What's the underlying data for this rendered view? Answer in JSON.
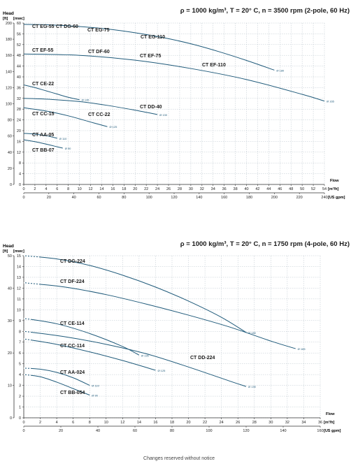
{
  "footer": "Changes reserved without notice",
  "chart_data": [
    {
      "type": "line",
      "title": "ρ = 1000 kg/m³, T = 20° C, n = 3500 rpm (2-pole, 60 Hz)",
      "ylabel": "Head",
      "ylabel_units": [
        "[ft]",
        "[mwc]"
      ],
      "xlabel": "Flow",
      "xlabel_units": [
        "[m³/h]",
        "[US gpm]"
      ],
      "x_m3h_ticks": [
        0,
        2,
        4,
        6,
        8,
        10,
        12,
        14,
        16,
        18,
        20,
        22,
        24,
        26,
        28,
        30,
        32,
        34,
        36,
        38,
        40,
        42,
        44,
        46,
        48,
        50,
        52,
        54
      ],
      "x_usgpm_ticks": [
        0,
        20,
        40,
        60,
        80,
        100,
        120,
        140,
        160,
        180,
        200,
        220,
        240
      ],
      "y_mwc_ticks": [
        0,
        4,
        8,
        12,
        16,
        20,
        24,
        28,
        32,
        36,
        40,
        44,
        48,
        52,
        56,
        60
      ],
      "y_ft_ticks": [
        0,
        20,
        40,
        60,
        80,
        100,
        120,
        140,
        160,
        180,
        200
      ],
      "xlim_m3h": [
        0,
        54
      ],
      "xlim_usgpm": [
        0,
        240
      ],
      "ylim_mwc": [
        0,
        60
      ],
      "ylim_ft": [
        0,
        200
      ],
      "grid": true,
      "series": [
        {
          "name": "CT EG-55 CT DG-60 / CT EG-75 / CT EG-110",
          "end_label": "Ø 180",
          "x": [
            0,
            5,
            10,
            15,
            20,
            25,
            30,
            35,
            40,
            45
          ],
          "y": [
            59.5,
            59.3,
            58.7,
            57.8,
            56.4,
            54.6,
            52.3,
            49.4,
            46.1,
            42.5
          ]
        },
        {
          "name": "CT EF-55 / CT DF-60 / CT EF-75 / CT EF-110",
          "end_label": "Ø 165",
          "x": [
            0,
            10,
            20,
            30,
            40,
            50,
            54
          ],
          "y": [
            48.5,
            48,
            46.2,
            43.1,
            39,
            33.5,
            31
          ]
        },
        {
          "name": "CT CE-22",
          "end_label": "Ø 135",
          "x": [
            0,
            2,
            4,
            6,
            8,
            10
          ],
          "y": [
            37,
            36,
            34.8,
            33.6,
            32.4,
            31.5
          ]
        },
        {
          "name": "CT DD-40",
          "end_label": "Ø 130",
          "x": [
            0,
            5,
            10,
            15,
            20,
            24
          ],
          "y": [
            32,
            31.6,
            30.8,
            29.4,
            27.6,
            26
          ]
        },
        {
          "name": "CT CC-15 / CT CC-22",
          "end_label": "Ø 125",
          "x": [
            0,
            4,
            8,
            12,
            15
          ],
          "y": [
            28.5,
            27.3,
            25.5,
            23.2,
            21.5
          ]
        },
        {
          "name": "CT AA-05",
          "end_label": "Ø 110",
          "x": [
            0,
            2,
            4,
            6
          ],
          "y": [
            19,
            18.7,
            18.1,
            17.2
          ]
        },
        {
          "name": "CT BB-07",
          "end_label": "Ø 90",
          "x": [
            0,
            2,
            4,
            6,
            7
          ],
          "y": [
            16.6,
            15.9,
            15,
            14,
            13.5
          ]
        }
      ],
      "curve_labels": [
        "CT EG-55",
        "CT DG-60",
        "CT EG-75",
        "CT EG-110",
        "CT EF-55",
        "CT DF-60",
        "CT EF-75",
        "CT EF-110",
        "CT CE-22",
        "CT DD-40",
        "CT CC-15",
        "CT CC-22",
        "CT AA-05",
        "CT BB-07"
      ]
    },
    {
      "type": "line",
      "title": "ρ = 1000 kg/m³, T = 20° C, n = 1750 rpm (4-pole, 60 Hz)",
      "ylabel": "Head",
      "ylabel_units": [
        "[ft]",
        "[mwc]"
      ],
      "xlabel": "Flow",
      "xlabel_units": [
        "[m³/h]",
        "[US gpm]"
      ],
      "x_m3h_ticks": [
        0,
        2,
        4,
        6,
        8,
        10,
        12,
        14,
        16,
        18,
        20,
        22,
        24,
        26,
        28,
        30,
        32,
        34,
        36
      ],
      "x_usgpm_ticks": [
        0,
        20,
        40,
        60,
        80,
        100,
        120,
        140,
        160
      ],
      "y_mwc_ticks": [
        0,
        1,
        2,
        3,
        4,
        5,
        6,
        7,
        8,
        9,
        10,
        11,
        12,
        13,
        14,
        15
      ],
      "y_ft_ticks": [
        0,
        10,
        20,
        30,
        40,
        50
      ],
      "xlim_m3h": [
        0,
        36
      ],
      "xlim_usgpm": [
        0,
        160
      ],
      "ylim_mwc": [
        0,
        15
      ],
      "ylim_ft": [
        0,
        50
      ],
      "grid": true,
      "series": [
        {
          "name": "CT DG-224",
          "end_label": "Ø 180",
          "x": [
            0,
            4,
            8,
            12,
            16,
            20,
            24,
            27
          ],
          "y": [
            15,
            14.7,
            14.1,
            13.2,
            12.1,
            10.8,
            9.3,
            7.9
          ],
          "dash_to": 2
        },
        {
          "name": "CT DF-224",
          "end_label": "Ø 165",
          "x": [
            0,
            5,
            10,
            15,
            20,
            25,
            30,
            33
          ],
          "y": [
            12.5,
            12.1,
            11.4,
            10.5,
            9.5,
            8.4,
            7.1,
            6.4
          ],
          "dash_to": 2
        },
        {
          "name": "CT CE-114",
          "end_label": "Ø 135",
          "x": [
            0,
            4,
            8,
            12,
            14
          ],
          "y": [
            9.2,
            8.7,
            7.8,
            6.6,
            5.8
          ],
          "dash_to": 1
        },
        {
          "name": "CT DD-224",
          "end_label": "Ø 130",
          "x": [
            0,
            5,
            10,
            15,
            20,
            25,
            27
          ],
          "y": [
            8,
            7.5,
            6.8,
            5.9,
            4.7,
            3.4,
            2.9
          ],
          "dash_to": 1
        },
        {
          "name": "CT CC-114",
          "end_label": "Ø 125",
          "x": [
            0,
            4,
            8,
            12,
            16
          ],
          "y": [
            7.3,
            6.8,
            6.1,
            5.3,
            4.4
          ],
          "dash_to": 1
        },
        {
          "name": "CT AA-024",
          "end_label": "Ø 110",
          "x": [
            0,
            2,
            4,
            6,
            8
          ],
          "y": [
            4.6,
            4.5,
            4.2,
            3.7,
            3
          ],
          "dash_to": 1
        },
        {
          "name": "CT BB-054",
          "end_label": "Ø 90",
          "x": [
            0,
            2,
            4,
            6,
            8
          ],
          "y": [
            4,
            3.8,
            3.3,
            2.7,
            2.1
          ],
          "dash_to": 1
        }
      ],
      "curve_labels": [
        "CT DG-224",
        "CT DF-224",
        "CT CE-114",
        "CT CC-114",
        "CT DD-224",
        "CT AA-024",
        "CT BB-054"
      ]
    }
  ]
}
